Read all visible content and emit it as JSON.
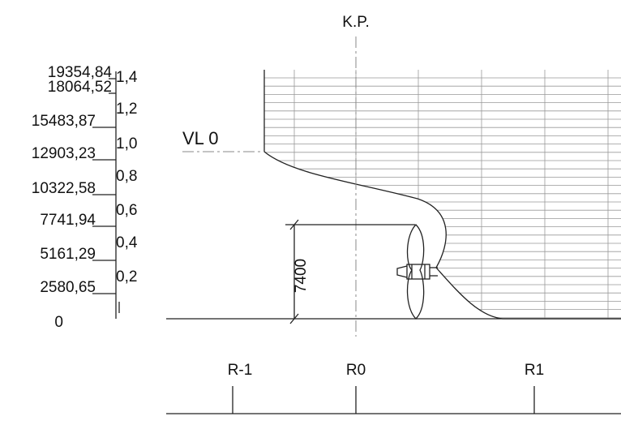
{
  "title": "K.P.",
  "waterline": "VL 0",
  "dimension": "7400",
  "left_scale": [
    "19354,84",
    "18064,52",
    "15483,87",
    "12903,23",
    "10322,58",
    "7741,94",
    "5161,29",
    "2580,65",
    "0"
  ],
  "right_scale": [
    "1,4",
    "1,2",
    "1,0",
    "0,8",
    "0,6",
    "0,4",
    "0,2"
  ],
  "stations": [
    "R-1",
    "R0",
    "R1"
  ]
}
